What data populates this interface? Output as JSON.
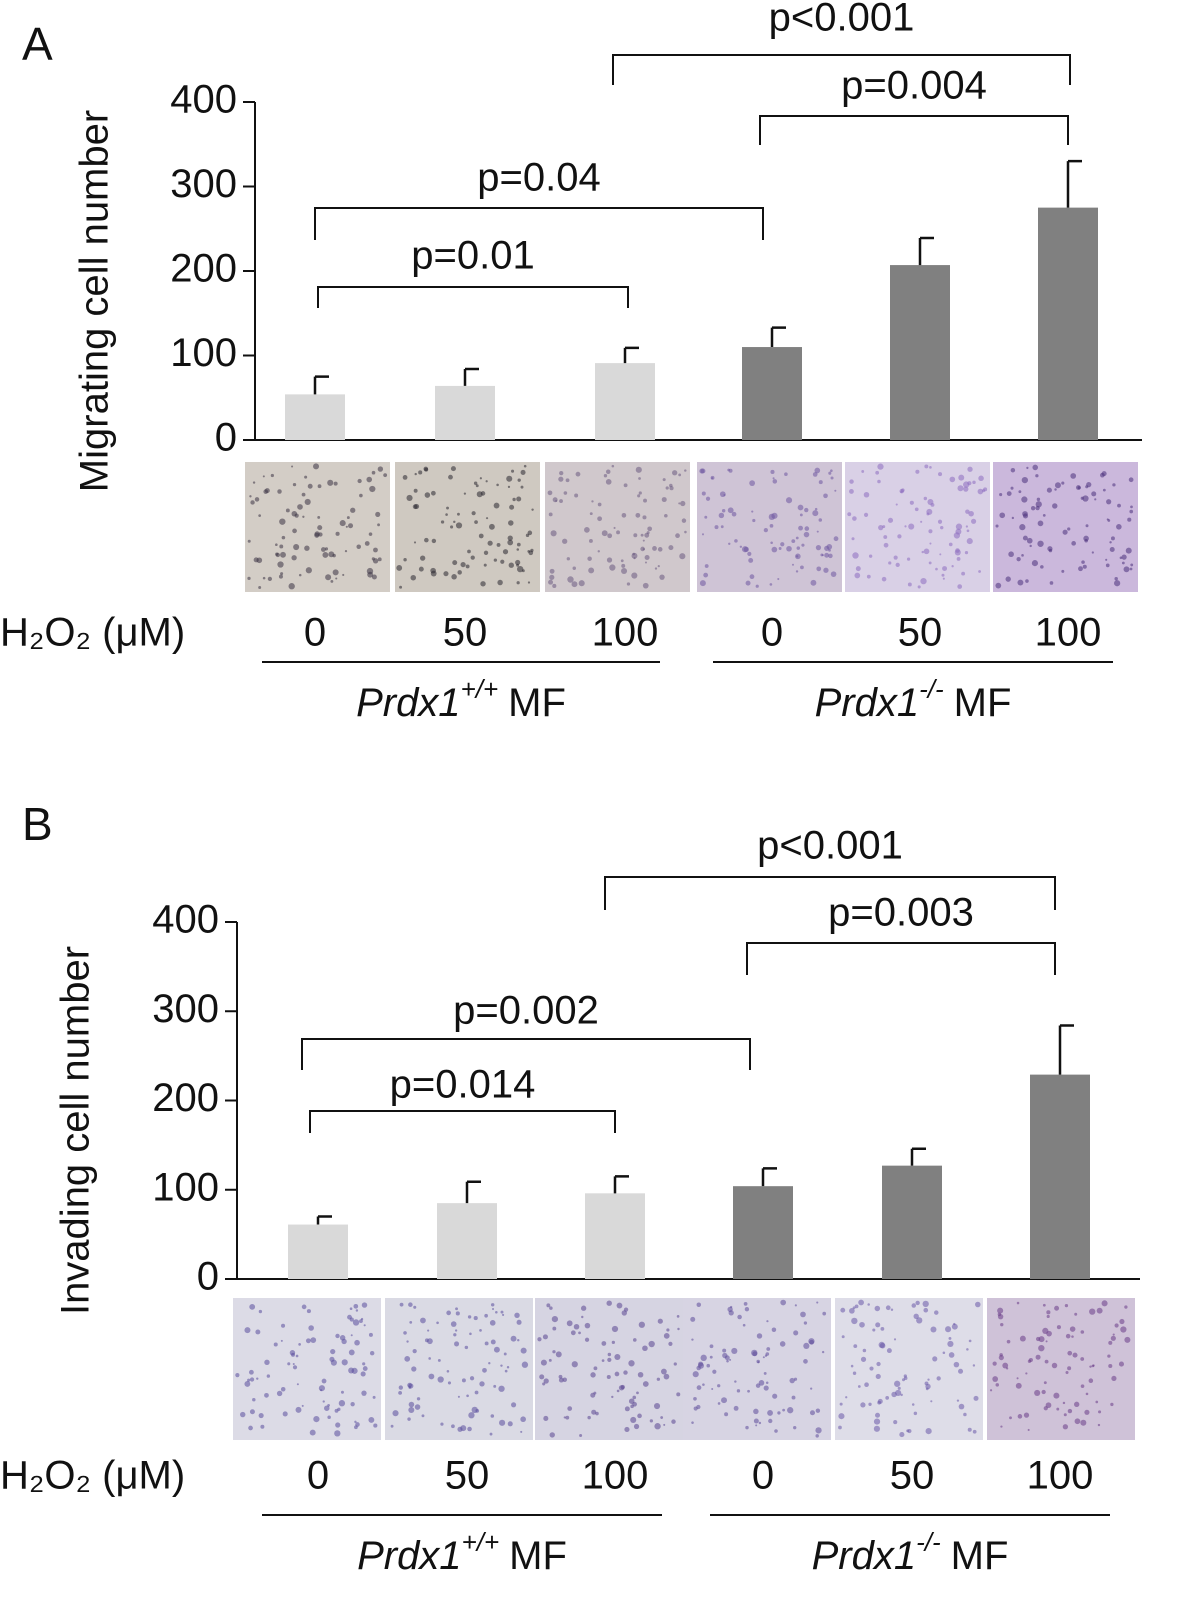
{
  "chart_data": [
    {
      "type": "bar",
      "panel": "A",
      "ylabel": "Migrating cell number",
      "categories": [
        "0",
        "50",
        "100",
        "0",
        "50",
        "100"
      ],
      "values": [
        54,
        64,
        91,
        110,
        207,
        275
      ],
      "errors": [
        21,
        20,
        18,
        23,
        32,
        55
      ],
      "colors": [
        "#d9d9d9",
        "#d9d9d9",
        "#d9d9d9",
        "#808080",
        "#808080",
        "#808080"
      ],
      "ylim": [
        0,
        400
      ],
      "yticks": [
        0,
        100,
        200,
        300,
        400
      ],
      "xlabel": "H₂O₂ (μM)",
      "groups": [
        {
          "gene": "Prdx1",
          "genotype": "+/+",
          "suffix": "MF"
        },
        {
          "gene": "Prdx1",
          "genotype": "-/-",
          "suffix": "MF"
        }
      ],
      "annotations": [
        "p=0.01",
        "p=0.04",
        "p=0.004",
        "p<0.001"
      ]
    },
    {
      "type": "bar",
      "panel": "B",
      "ylabel": "Invading cell number",
      "categories": [
        "0",
        "50",
        "100",
        "0",
        "50",
        "100"
      ],
      "values": [
        61,
        85,
        96,
        104,
        127,
        229
      ],
      "errors": [
        9,
        24,
        19,
        20,
        19,
        55
      ],
      "colors": [
        "#d9d9d9",
        "#d9d9d9",
        "#d9d9d9",
        "#808080",
        "#808080",
        "#808080"
      ],
      "ylim": [
        0,
        400
      ],
      "yticks": [
        0,
        100,
        200,
        300,
        400
      ],
      "xlabel": "H₂O₂ (μM)",
      "groups": [
        {
          "gene": "Prdx1",
          "genotype": "+/+",
          "suffix": "MF"
        },
        {
          "gene": "Prdx1",
          "genotype": "-/-",
          "suffix": "MF"
        }
      ],
      "annotations": [
        "p=0.014",
        "p=0.002",
        "p=0.003",
        "p<0.001"
      ]
    }
  ]
}
